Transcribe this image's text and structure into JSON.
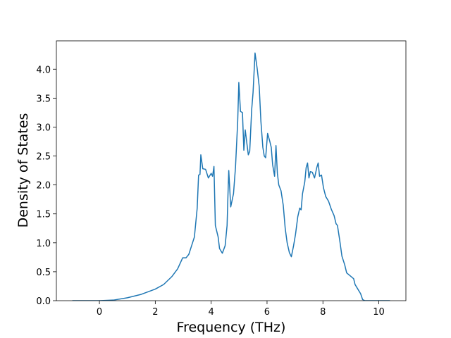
{
  "chart_data": {
    "type": "line",
    "xlabel": "Frequency (THz)",
    "ylabel": "Density of States",
    "x": [
      -0.97,
      0,
      0.5,
      1.0,
      1.5,
      2.0,
      2.3,
      2.6,
      2.8,
      2.98,
      3.1,
      3.2,
      3.3,
      3.4,
      3.5,
      3.55,
      3.6,
      3.63,
      3.7,
      3.8,
      3.9,
      4.0,
      4.05,
      4.1,
      4.15,
      4.25,
      4.3,
      4.4,
      4.5,
      4.57,
      4.6,
      4.63,
      4.7,
      4.8,
      4.87,
      4.95,
      4.99,
      5.05,
      5.12,
      5.17,
      5.22,
      5.27,
      5.33,
      5.38,
      5.45,
      5.5,
      5.57,
      5.65,
      5.72,
      5.78,
      5.85,
      5.9,
      5.95,
      6.02,
      6.1,
      6.15,
      6.2,
      6.27,
      6.32,
      6.37,
      6.42,
      6.5,
      6.58,
      6.65,
      6.72,
      6.8,
      6.87,
      6.95,
      7.02,
      7.1,
      7.17,
      7.22,
      7.27,
      7.35,
      7.4,
      7.45,
      7.5,
      7.55,
      7.62,
      7.7,
      7.78,
      7.83,
      7.88,
      7.95,
      8.02,
      8.1,
      8.2,
      8.3,
      8.4,
      8.47,
      8.52,
      8.6,
      8.68,
      8.78,
      8.85,
      8.95,
      9.1,
      9.15,
      9.25,
      9.35,
      9.42,
      9.5,
      10.4
    ],
    "series": [
      {
        "color": "#1f77b4",
        "values": [
          0,
          0,
          0.01,
          0.05,
          0.11,
          0.2,
          0.28,
          0.42,
          0.55,
          0.74,
          0.74,
          0.8,
          0.95,
          1.1,
          1.6,
          2.17,
          2.18,
          2.52,
          2.28,
          2.27,
          2.12,
          2.2,
          2.15,
          2.32,
          1.3,
          1.1,
          0.9,
          0.82,
          0.95,
          1.3,
          1.8,
          2.25,
          1.62,
          1.85,
          2.3,
          3.1,
          3.77,
          3.27,
          3.25,
          2.6,
          2.95,
          2.75,
          2.52,
          2.58,
          3.3,
          3.6,
          4.28,
          4.0,
          3.7,
          3.1,
          2.65,
          2.5,
          2.47,
          2.89,
          2.75,
          2.65,
          2.35,
          2.15,
          2.68,
          2.2,
          2.0,
          1.9,
          1.65,
          1.25,
          1.0,
          0.83,
          0.76,
          0.95,
          1.15,
          1.45,
          1.6,
          1.57,
          1.85,
          2.05,
          2.3,
          2.38,
          2.12,
          2.23,
          2.22,
          2.12,
          2.3,
          2.38,
          2.15,
          2.17,
          1.95,
          1.8,
          1.72,
          1.58,
          1.47,
          1.33,
          1.3,
          1.05,
          0.77,
          0.62,
          0.48,
          0.44,
          0.38,
          0.28,
          0.2,
          0.12,
          0.02,
          0,
          0
        ]
      }
    ],
    "xlim": [
      -1.54,
      10.97
    ],
    "xticks": [
      0,
      2,
      4,
      6,
      8,
      10
    ],
    "ylim": [
      0,
      4.49
    ],
    "yticks": [
      {
        "value": 0,
        "label": "0.0"
      },
      {
        "value": 0.5,
        "label": "0.5"
      },
      {
        "value": 1.0,
        "label": "1.0"
      },
      {
        "value": 1.5,
        "label": "1.5"
      },
      {
        "value": 2.0,
        "label": "2.0"
      },
      {
        "value": 2.5,
        "label": "2.5"
      },
      {
        "value": 3.0,
        "label": "3.0"
      },
      {
        "value": 3.5,
        "label": "3.5"
      },
      {
        "value": 4.0,
        "label": "4.0"
      }
    ]
  }
}
